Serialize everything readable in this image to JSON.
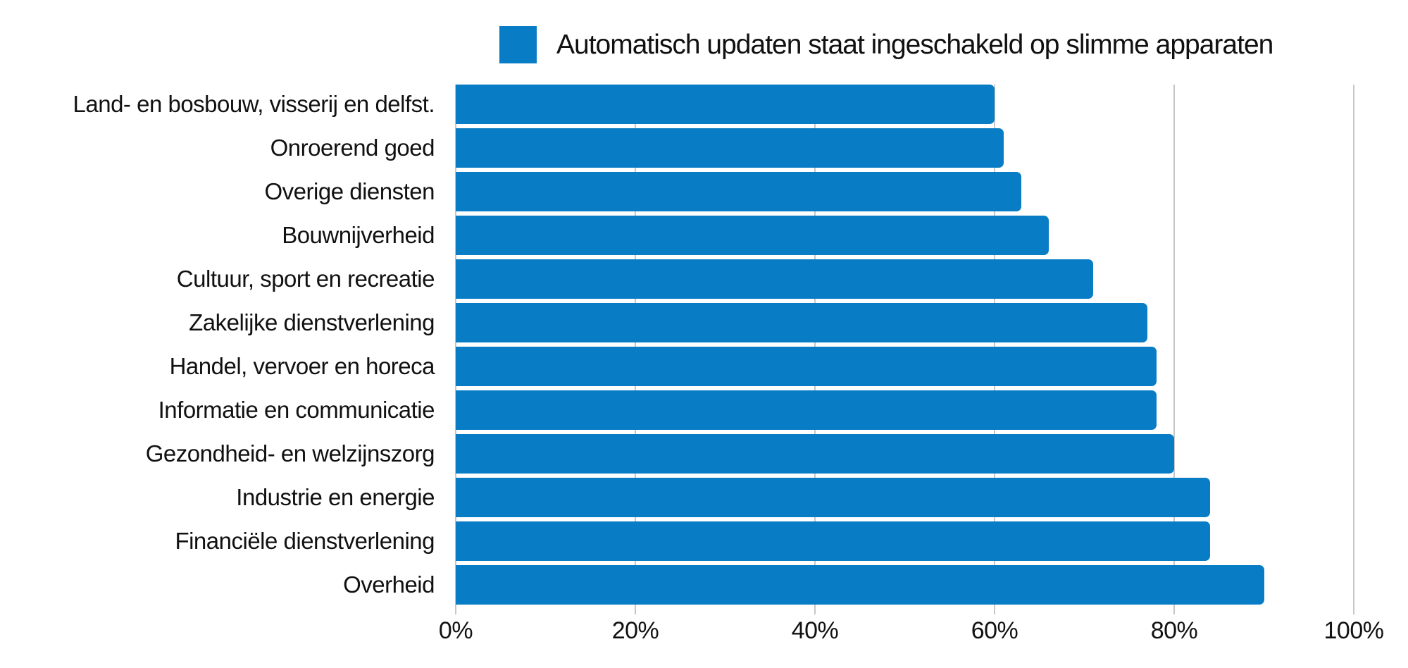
{
  "chart_data": {
    "type": "bar",
    "orientation": "horizontal",
    "legend": "Automatisch updaten staat ingeschakeld op slimme apparaten",
    "legend_position": "top",
    "categories": [
      "Land- en bosbouw, visserij en delfst.",
      "Onroerend goed",
      "Overige diensten",
      "Bouwnijverheid",
      "Cultuur, sport en recreatie",
      "Zakelijke dienstverlening",
      "Handel, vervoer en horeca",
      "Informatie en communicatie",
      "Gezondheid- en welzijnszorg",
      "Industrie en energie",
      "Financiële dienstverlening",
      "Overheid"
    ],
    "values": [
      60,
      61,
      63,
      66,
      71,
      77,
      78,
      78,
      80,
      84,
      84,
      90
    ],
    "unit": "%",
    "xlabel": "",
    "ylabel": "",
    "xlim": [
      0,
      100
    ],
    "xticks": [
      0,
      20,
      40,
      60,
      80,
      100
    ],
    "xtick_labels": [
      "0%",
      "20%",
      "40%",
      "60%",
      "80%",
      "100%"
    ],
    "grid": "vertical",
    "colors": {
      "bar": "#087cc4",
      "gridline": "#c7c7c7",
      "text": "#111111",
      "background": "#ffffff"
    }
  }
}
